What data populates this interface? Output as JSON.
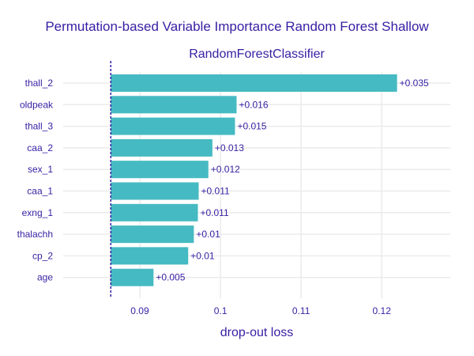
{
  "chart_data": {
    "type": "bar",
    "orientation": "horizontal",
    "title": "Permutation-based Variable Importance Random Forest Shallow",
    "subtitle": "RandomForestClassifier",
    "xlabel": "drop-out loss",
    "ylabel": "",
    "baseline": 0.0864,
    "xlim": [
      0.0805,
      0.1285
    ],
    "xticks": [
      0.09,
      0.1,
      0.11,
      0.12
    ],
    "xtick_labels": [
      "0.09",
      "0.1",
      "0.11",
      "0.12"
    ],
    "grid": true,
    "categories": [
      "thall_2",
      "oldpeak",
      "thall_3",
      "caa_2",
      "sex_1",
      "caa_1",
      "exng_1",
      "thalachh",
      "cp_2",
      "age"
    ],
    "values": [
      0.1219,
      0.102,
      0.1018,
      0.099,
      0.0985,
      0.0973,
      0.0972,
      0.0967,
      0.096,
      0.0917
    ],
    "data_labels": [
      "+0.035",
      "+0.016",
      "+0.015",
      "+0.013",
      "+0.012",
      "+0.011",
      "+0.011",
      "+0.01",
      "+0.01",
      "+0.005"
    ],
    "colors": {
      "bar": "#46bac2",
      "text": "#371ea3",
      "baseline": "#371ea3",
      "grid": "#ebebeb"
    }
  }
}
